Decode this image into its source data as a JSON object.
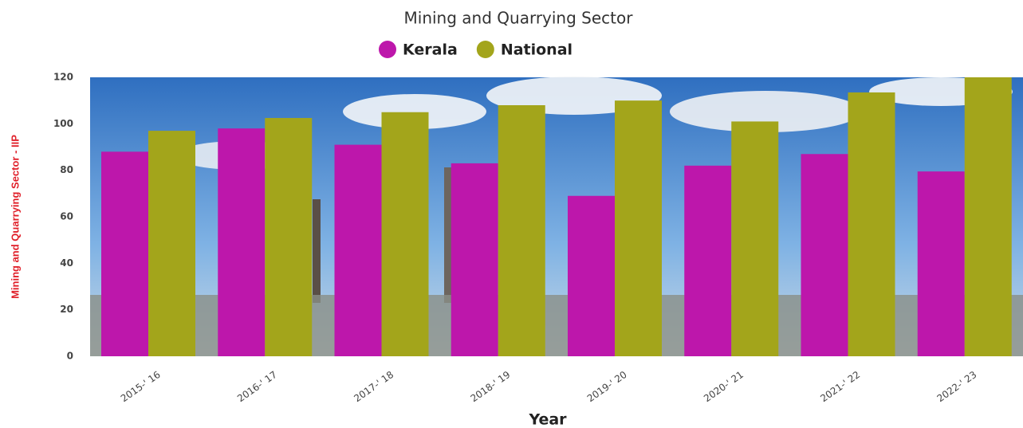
{
  "chart_data": {
    "type": "bar",
    "title": "Mining and Quarrying Sector",
    "y_label": "Mining and Quarrying Sector - IIP",
    "x_label": "Year",
    "categories": [
      "2015-' 16",
      "2016-' 17",
      "2017-' 18",
      "2018-' 19",
      "2019-' 20",
      "2020-' 21",
      "2021-' 22",
      "2022-' 23"
    ],
    "series": [
      {
        "name": "Kerala",
        "color": "#bd17ab",
        "values": [
          88,
          98,
          91,
          83,
          69,
          82,
          87,
          79.5
        ]
      },
      {
        "name": "National",
        "color": "#a3a51b",
        "values": [
          97,
          102.5,
          105,
          108,
          110,
          101,
          113.5,
          120
        ]
      }
    ],
    "ylim": [
      0,
      120
    ],
    "yticks": [
      0,
      20,
      40,
      60,
      80,
      100,
      120
    ]
  }
}
